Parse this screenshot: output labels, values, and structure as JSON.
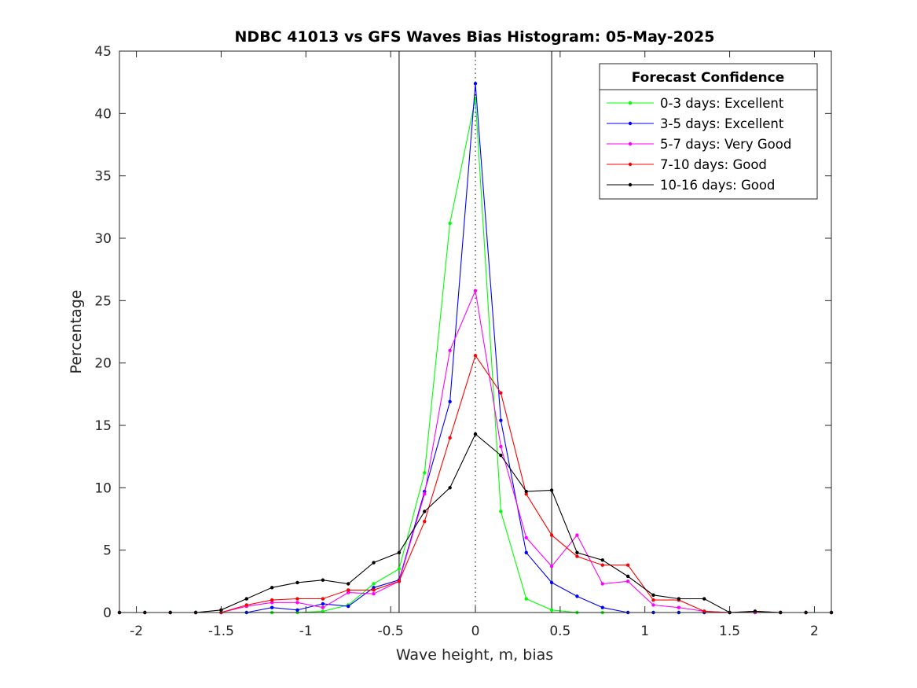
{
  "chart_data": {
    "type": "line",
    "title": "NDBC 41013 vs GFS Waves Bias Histogram: 05-May-2025",
    "xlabel": "Wave height, m, bias",
    "ylabel": "Percentage",
    "xlim": [
      -2.1,
      2.1
    ],
    "ylim": [
      0,
      45
    ],
    "xticks": [
      -2,
      -1.5,
      -1,
      -0.5,
      0,
      0.5,
      1,
      1.5,
      2
    ],
    "xtick_labels": [
      "-2",
      "-1.5",
      "-1",
      "-0.5",
      "0",
      "0.5",
      "1",
      "1.5",
      "2"
    ],
    "yticks": [
      0,
      5,
      10,
      15,
      20,
      25,
      30,
      35,
      40,
      45
    ],
    "ytick_labels": [
      "0",
      "5",
      "10",
      "15",
      "20",
      "25",
      "30",
      "35",
      "40",
      "45"
    ],
    "grid": false,
    "legend": {
      "title": "Forecast Confidence",
      "placement": "top-right"
    },
    "vertical_lines": [
      {
        "x": -0.45,
        "style": "solid"
      },
      {
        "x": 0,
        "style": "dotted"
      },
      {
        "x": 0.45,
        "style": "solid"
      }
    ],
    "x": [
      -2.1,
      -1.95,
      -1.8,
      -1.65,
      -1.5,
      -1.35,
      -1.2,
      -1.05,
      -0.9,
      -0.75,
      -0.6,
      -0.45,
      -0.3,
      -0.15,
      0,
      0.15,
      0.3,
      0.45,
      0.6,
      0.75,
      0.9,
      1.05,
      1.2,
      1.35,
      1.5,
      1.65,
      1.8,
      1.95,
      2.1
    ],
    "series": [
      {
        "name": "0-3 days: Excellent",
        "color": "#00ff00",
        "values": [
          0,
          0,
          0,
          0,
          0,
          0,
          0,
          0,
          0.1,
          0.6,
          2.3,
          3.5,
          11.2,
          31.2,
          41.2,
          8.1,
          1.1,
          0.2,
          0,
          0,
          0,
          0,
          0,
          0,
          0,
          0,
          0,
          0,
          0
        ]
      },
      {
        "name": "3-5 days: Excellent",
        "color": "#0000ff",
        "values": [
          0,
          0,
          0,
          0,
          0,
          0,
          0.4,
          0.2,
          0.7,
          0.5,
          2.0,
          2.6,
          9.7,
          16.9,
          42.4,
          15.4,
          4.8,
          2.4,
          1.3,
          0.4,
          0,
          0,
          0,
          0,
          0,
          0,
          0,
          0,
          0
        ]
      },
      {
        "name": "5-7 days: Very Good",
        "color": "#ff00ff",
        "values": [
          0,
          0,
          0,
          0,
          0,
          0.5,
          0.8,
          0.8,
          0.4,
          1.6,
          1.5,
          2.5,
          9.5,
          21.0,
          25.8,
          13.3,
          6.0,
          3.7,
          6.2,
          2.3,
          2.5,
          0.6,
          0.4,
          0.1,
          0,
          0,
          0,
          0,
          0
        ]
      },
      {
        "name": "7-10 days: Good",
        "color": "#ff0000",
        "values": [
          0,
          0,
          0,
          0,
          0,
          0.6,
          1.0,
          1.1,
          1.1,
          1.8,
          1.8,
          2.5,
          7.3,
          14.0,
          20.6,
          17.6,
          9.5,
          6.2,
          4.5,
          3.8,
          3.8,
          1.0,
          1.0,
          0.1,
          0,
          0.1,
          0,
          0,
          0
        ]
      },
      {
        "name": "10-16 days: Good",
        "color": "#000000",
        "values": [
          0,
          0,
          0,
          0,
          0.2,
          1.1,
          2.0,
          2.4,
          2.6,
          2.3,
          4.0,
          4.8,
          8.1,
          10.0,
          14.3,
          12.6,
          9.7,
          9.8,
          4.8,
          4.2,
          2.9,
          1.4,
          1.1,
          1.1,
          0,
          0.1,
          0,
          0,
          0
        ]
      }
    ]
  }
}
